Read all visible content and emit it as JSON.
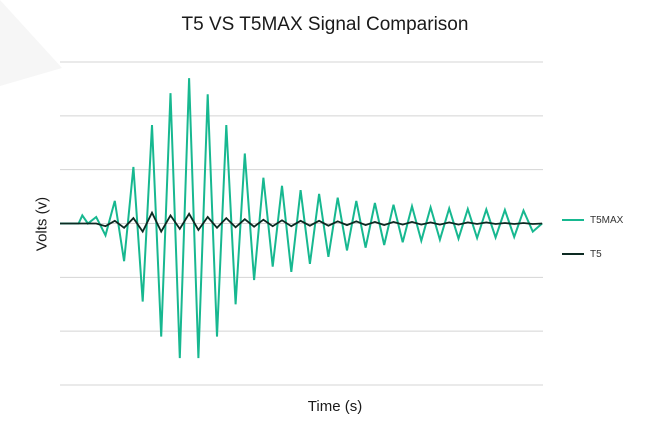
{
  "colors": {
    "t5max": "#17b890",
    "t5": "#0d2a22",
    "grid": "#d4d4d4"
  },
  "chart_data": {
    "type": "line",
    "title": "T5 VS T5MAX Signal Comparison",
    "xlabel": "Time (s)",
    "ylabel": "Volts (v)",
    "grid": "horizontal",
    "legend": "right",
    "ylim": [
      -3,
      3
    ],
    "series": [
      {
        "name": "T5MAX",
        "x": [
          0,
          1,
          1.2,
          1.5,
          1.95,
          2.45,
          2.95,
          3.45,
          3.95,
          4.45,
          4.95,
          5.45,
          5.95,
          6.45,
          6.95,
          7.45,
          7.95,
          8.45,
          8.95,
          9.45,
          9.95,
          10.45,
          10.95,
          11.45,
          11.95,
          12.45,
          12.95,
          13.45,
          13.95,
          14.45,
          14.95,
          15.45,
          15.95,
          16.45,
          16.95,
          17.45,
          17.95,
          18.45,
          18.95,
          19.45,
          19.95,
          20.45,
          20.95,
          21.45,
          21.95,
          22.45,
          22.95,
          23.45,
          23.95,
          24.45,
          24.95,
          25.45,
          25.95
        ],
        "values": [
          0,
          0,
          0.15,
          0.0,
          0.12,
          -0.22,
          0.42,
          -0.7,
          1.05,
          -1.45,
          1.83,
          -2.1,
          2.42,
          -2.5,
          2.7,
          -2.5,
          2.4,
          -2.1,
          1.83,
          -1.5,
          1.3,
          -1.05,
          0.85,
          -0.8,
          0.7,
          -0.9,
          0.62,
          -0.75,
          0.55,
          -0.62,
          0.48,
          -0.5,
          0.42,
          -0.45,
          0.38,
          -0.4,
          0.35,
          -0.35,
          0.32,
          -0.32,
          0.3,
          -0.3,
          0.28,
          -0.28,
          0.27,
          -0.27,
          0.26,
          -0.26,
          0.25,
          -0.25,
          0.24,
          -0.15,
          0.0
        ]
      },
      {
        "name": "T5",
        "x": [
          0,
          1.95,
          2.45,
          2.95,
          3.45,
          3.95,
          4.45,
          4.95,
          5.45,
          5.95,
          6.45,
          6.95,
          7.45,
          7.95,
          8.45,
          8.95,
          9.45,
          9.95,
          10.45,
          10.95,
          11.45,
          11.95,
          12.45,
          12.95,
          13.45,
          13.95,
          14.45,
          14.95,
          15.45,
          15.95,
          16.45,
          16.95,
          17.45,
          17.95,
          18.45,
          18.95,
          19.45,
          19.95,
          20.45,
          20.95,
          21.45,
          21.95,
          22.45,
          22.95,
          23.45,
          23.95,
          24.45,
          24.95,
          25.45,
          25.95
        ],
        "values": [
          0,
          0,
          -0.05,
          0.05,
          -0.08,
          0.1,
          -0.15,
          0.2,
          -0.15,
          0.15,
          -0.1,
          0.18,
          -0.12,
          0.12,
          -0.08,
          0.1,
          -0.07,
          0.08,
          -0.06,
          0.07,
          -0.05,
          0.06,
          -0.05,
          0.05,
          -0.04,
          0.05,
          -0.04,
          0.04,
          -0.03,
          0.04,
          -0.03,
          0.03,
          -0.03,
          0.03,
          -0.02,
          0.03,
          -0.02,
          0.02,
          -0.02,
          0.02,
          -0.02,
          0.02,
          -0.01,
          0.02,
          -0.01,
          0.01,
          -0.01,
          0.01,
          -0.01,
          0.0
        ]
      }
    ]
  }
}
